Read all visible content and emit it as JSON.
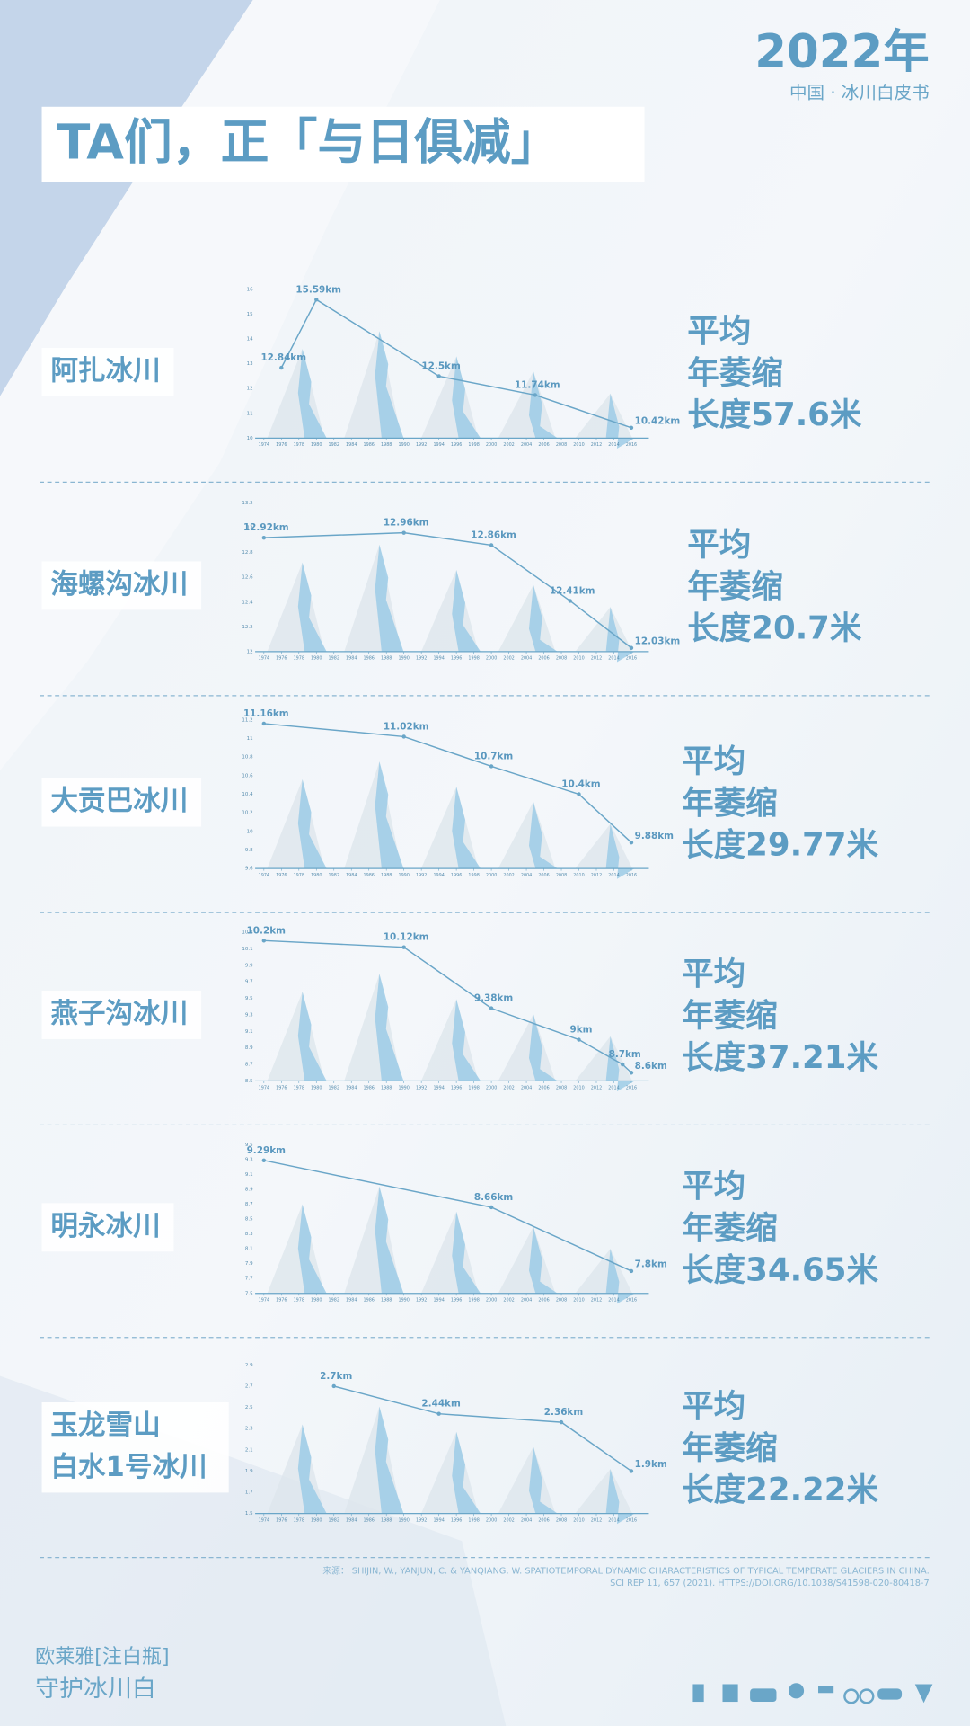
{
  "header": {
    "year": "2022年",
    "subtitle": "中国 · 冰川白皮书",
    "title": "TA们，正「与日俱减」"
  },
  "chart_data": [
    {
      "type": "line",
      "title": [
        "阿扎冰川"
      ],
      "annotation": [
        "平均",
        "年萎缩",
        "长度57.6米"
      ],
      "color": "#6aa6c8",
      "x": [
        1976,
        1980,
        1994,
        2005,
        2016
      ],
      "values": [
        12.84,
        15.59,
        12.5,
        11.74,
        10.42
      ],
      "value_labels": [
        "12.84km",
        "15.59km",
        "12.5km",
        "11.74km",
        "10.42km"
      ],
      "xlim": [
        1973,
        2018
      ],
      "xticks": [
        1974,
        1976,
        1978,
        1980,
        1982,
        1984,
        1986,
        1988,
        1990,
        1992,
        1994,
        1996,
        1998,
        2000,
        2002,
        2004,
        2006,
        2008,
        2010,
        2012,
        2014,
        2016
      ],
      "ylim": [
        10,
        16
      ],
      "yticks": [
        10,
        11,
        12,
        13,
        14,
        15,
        16
      ]
    },
    {
      "type": "line",
      "title": [
        "海螺沟冰川"
      ],
      "annotation": [
        "平均",
        "年萎缩",
        "长度20.7米"
      ],
      "color": "#6aa6c8",
      "x": [
        1974,
        1990,
        2000,
        2009,
        2016
      ],
      "values": [
        12.92,
        12.96,
        12.86,
        12.41,
        12.03
      ],
      "value_labels": [
        "12.92km",
        "12.96km",
        "12.86km",
        "12.41km",
        "12.03km"
      ],
      "xlim": [
        1973,
        2018
      ],
      "xticks": [
        1974,
        1976,
        1978,
        1980,
        1982,
        1984,
        1986,
        1988,
        1990,
        1992,
        1994,
        1996,
        1998,
        2000,
        2002,
        2004,
        2006,
        2008,
        2010,
        2012,
        2014,
        2016
      ],
      "ylim": [
        12,
        13.2
      ],
      "yticks": [
        12,
        12.2,
        12.4,
        12.6,
        12.8,
        13,
        13.2
      ]
    },
    {
      "type": "line",
      "title": [
        "大贡巴冰川"
      ],
      "annotation": [
        "平均",
        "年萎缩",
        "长度29.77米"
      ],
      "color": "#6aa6c8",
      "x": [
        1974,
        1990,
        2000,
        2010,
        2016
      ],
      "values": [
        11.16,
        11.02,
        10.7,
        10.4,
        9.88
      ],
      "value_labels": [
        "11.16km",
        "11.02km",
        "10.7km",
        "10.4km",
        "9.88km"
      ],
      "xlim": [
        1973,
        2018
      ],
      "xticks": [
        1974,
        1976,
        1978,
        1980,
        1982,
        1984,
        1986,
        1988,
        1990,
        1992,
        1994,
        1996,
        1998,
        2000,
        2002,
        2004,
        2006,
        2008,
        2010,
        2012,
        2014,
        2016
      ],
      "ylim": [
        9.6,
        11.2
      ],
      "yticks": [
        9.6,
        9.8,
        10,
        10.2,
        10.4,
        10.6,
        10.8,
        11,
        11.2
      ]
    },
    {
      "type": "line",
      "title": [
        "燕子沟冰川"
      ],
      "annotation": [
        "平均",
        "年萎缩",
        "长度37.21米"
      ],
      "color": "#6aa6c8",
      "x": [
        1974,
        1990,
        2000,
        2010,
        2015,
        2016
      ],
      "values": [
        10.2,
        10.12,
        9.38,
        9,
        8.7,
        8.6
      ],
      "value_labels": [
        "10.2km",
        "10.12km",
        "9.38km",
        "9km",
        "8.7km",
        "8.6km"
      ],
      "xlim": [
        1973,
        2018
      ],
      "xticks": [
        1974,
        1976,
        1978,
        1980,
        1982,
        1984,
        1986,
        1988,
        1990,
        1992,
        1994,
        1996,
        1998,
        2000,
        2002,
        2004,
        2006,
        2008,
        2010,
        2012,
        2014,
        2016
      ],
      "ylim": [
        8.5,
        10.3
      ],
      "yticks": [
        8.5,
        8.7,
        8.9,
        9.1,
        9.3,
        9.5,
        9.7,
        9.9,
        10.1,
        10.3
      ]
    },
    {
      "type": "line",
      "title": [
        "明永冰川"
      ],
      "annotation": [
        "平均",
        "年萎缩",
        "长度34.65米"
      ],
      "color": "#6aa6c8",
      "x": [
        1974,
        2000,
        2016
      ],
      "values": [
        9.29,
        8.66,
        7.8
      ],
      "value_labels": [
        "9.29km",
        "8.66km",
        "7.8km"
      ],
      "xlim": [
        1973,
        2018
      ],
      "xticks": [
        1974,
        1976,
        1978,
        1980,
        1982,
        1984,
        1986,
        1988,
        1990,
        1992,
        1994,
        1996,
        1998,
        2000,
        2002,
        2004,
        2006,
        2008,
        2010,
        2012,
        2014,
        2016
      ],
      "ylim": [
        7.5,
        9.5
      ],
      "yticks": [
        7.5,
        7.7,
        7.9,
        8.1,
        8.3,
        8.5,
        8.7,
        8.9,
        9.1,
        9.3,
        9.5
      ]
    },
    {
      "type": "line",
      "title": [
        "玉龙雪山",
        "白水1号冰川"
      ],
      "annotation": [
        "平均",
        "年萎缩",
        "长度22.22米"
      ],
      "color": "#6aa6c8",
      "x": [
        1982,
        1994,
        2008,
        2016
      ],
      "values": [
        2.7,
        2.44,
        2.36,
        1.9
      ],
      "value_labels": [
        "2.7km",
        "2.44km",
        "2.36km",
        "1.9km"
      ],
      "xlim": [
        1973,
        2018
      ],
      "xticks": [
        1974,
        1976,
        1978,
        1980,
        1982,
        1984,
        1986,
        1988,
        1990,
        1992,
        1994,
        1996,
        1998,
        2000,
        2002,
        2004,
        2006,
        2008,
        2010,
        2012,
        2014,
        2016
      ],
      "ylim": [
        1.5,
        2.9
      ],
      "yticks": [
        1.5,
        1.7,
        1.9,
        2.1,
        2.3,
        2.5,
        2.7,
        2.9
      ]
    }
  ],
  "footer": {
    "source": [
      "来源：  SHIJIN, W., YANJUN, C. & YANQIANG, W. SPATIOTEMPORAL DYNAMIC CHARACTERISTICS OF TYPICAL TEMPERATE GLACIERS IN CHINA.",
      "SCI REP 11, 657 (2021). HTTPS://DOI.ORG/10.1038/S41598-020-80418-7"
    ],
    "brand": [
      "欧莱雅[注白瓶]",
      "守护冰川白"
    ]
  }
}
